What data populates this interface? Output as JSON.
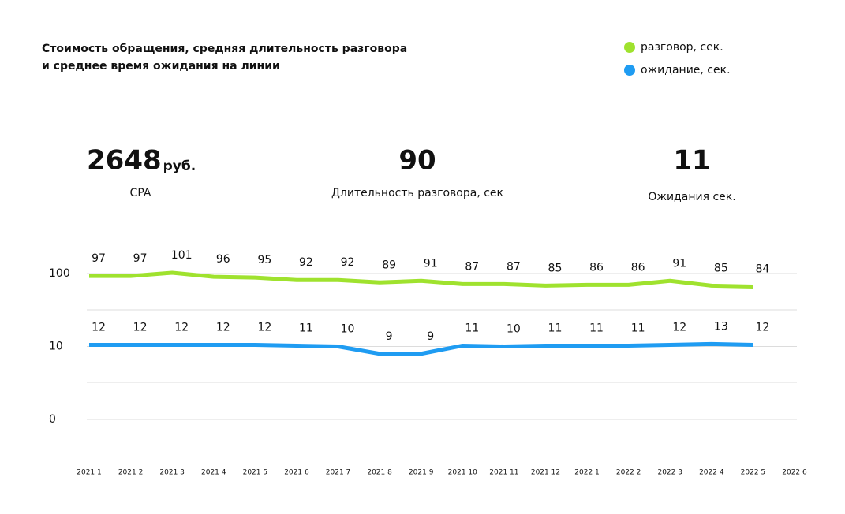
{
  "title": [
    "Стоимость обращения, средняя длительность разговора",
    "и среднее время ожидания на линии"
  ],
  "kpis": [
    {
      "value": "2648",
      "unit": "руб.",
      "label": "CPA"
    },
    {
      "value": "90",
      "label": "Длительность разговора, сек"
    },
    {
      "value": "11",
      "label": "Ожидания сек."
    }
  ],
  "chart_data": {
    "type": "line",
    "categories": [
      "2021 1",
      "2021 2",
      "2021 3",
      "2021 4",
      "2021 5",
      "2021 6",
      "2021 7",
      "2021 8",
      "2021 9",
      "2021 10",
      "2021 11",
      "2021 12",
      "2022 1",
      "2022 2",
      "2022 3",
      "2022 4",
      "2022 5",
      "2022 6"
    ],
    "series": [
      {
        "name": "разговор, сек.",
        "color": "#9fe22e",
        "values": [
          97,
          97,
          101,
          96,
          95,
          92,
          92,
          89,
          91,
          87,
          87,
          85,
          86,
          86,
          91,
          85,
          84,
          null
        ]
      },
      {
        "name": "ожидание, сек.",
        "color": "#1f9cf2",
        "values": [
          12,
          12,
          12,
          12,
          12,
          11,
          10,
          9,
          9,
          11,
          10,
          11,
          11,
          11,
          12,
          13,
          12,
          null
        ]
      }
    ],
    "ylim": [
      0,
      100
    ],
    "yticks": [
      100,
      10,
      0
    ],
    "grid": true,
    "legend": "top-right"
  }
}
